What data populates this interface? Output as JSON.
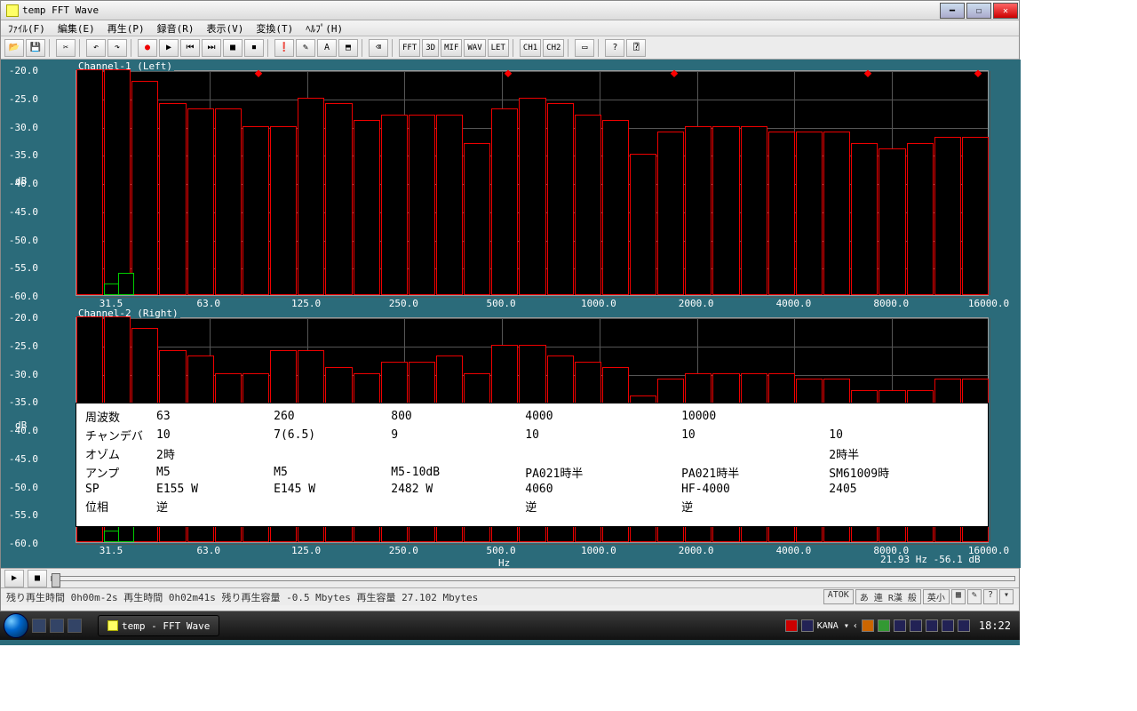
{
  "window": {
    "title": "temp   FFT Wave",
    "menus": [
      "ﾌｧｲﾙ(F)",
      "編集(E)",
      "再生(P)",
      "録音(R)",
      "表示(V)",
      "変換(T)",
      "ﾍﾙﾌﾟ(H)"
    ]
  },
  "toolbar_text_buttons": [
    "FFT",
    "3D",
    "MIF",
    "WAV",
    "LET",
    "CH1",
    "CH2"
  ],
  "chart": {
    "bg": "#2b6b7a",
    "panel_bg": "#000000",
    "bar_border": "#e00000",
    "grid_color": "#555555",
    "text_color": "#ffffff",
    "y_unit": "dB",
    "x_unit": "Hz",
    "panel1_title": "Channel-1 (Left)",
    "panel2_title": "Channel-2 (Right)",
    "y_ticks": [
      -20,
      -25,
      -30,
      -35,
      -40,
      -45,
      -50,
      -55,
      -60
    ],
    "y_min": -60,
    "y_max": -20,
    "x_ticks": [
      "31.5",
      "63.0",
      "125.0",
      "250.0",
      "500.0",
      "1000.0",
      "2000.0",
      "4000.0",
      "8000.0",
      "16000.0"
    ],
    "bars1": [
      -20,
      -20,
      -22,
      -26,
      -27,
      -27,
      -30,
      -30,
      -25,
      -26,
      -29,
      -28,
      -28,
      -28,
      -33,
      -27,
      -25,
      -26,
      -28,
      -29,
      -35,
      -31,
      -30,
      -30,
      -30,
      -31,
      -31,
      -31,
      -33,
      -34,
      -33,
      -32,
      -32
    ],
    "bars2": [
      -20,
      -20,
      -22,
      -26,
      -27,
      -30,
      -30,
      -26,
      -26,
      -29,
      -30,
      -28,
      -28,
      -27,
      -30,
      -25,
      -25,
      -27,
      -28,
      -29,
      -34,
      -31,
      -30,
      -30,
      -30,
      -30,
      -31,
      -31,
      -33,
      -33,
      -33,
      -31,
      -31
    ],
    "green_bars": [
      [
        -58,
        2
      ],
      [
        -56,
        3
      ]
    ],
    "peak_positions": [
      6,
      15,
      21,
      28,
      32
    ],
    "readout": "21.93 Hz -56.1  dB"
  },
  "overlay": {
    "rows": [
      [
        "周波数",
        "63",
        "",
        "260",
        "",
        "800",
        "",
        "4000",
        "",
        "10000"
      ],
      [
        "チャンデバ",
        "10",
        "",
        "7(6.5)",
        "",
        "9",
        "",
        "10",
        "",
        "10",
        "10"
      ],
      [
        "オゾム",
        "2時",
        "",
        "",
        "",
        "",
        "",
        "",
        "",
        "",
        "2時半"
      ],
      [
        "アンプ",
        "M5",
        "",
        "M5",
        "",
        "M5-10dB",
        "",
        "PA021時半",
        "",
        "PA021時半",
        "SM61009時"
      ],
      [
        "SP",
        "E155 W",
        "",
        "E145 W",
        "",
        "2482 W",
        "",
        "4060",
        "",
        "HF-4000",
        "2405"
      ],
      [
        "位相",
        "逆",
        "",
        "",
        "",
        "",
        "",
        "逆",
        "",
        "逆",
        ""
      ]
    ]
  },
  "status": {
    "left": "残り再生時間 0h00m-2s   再生時間 0h02m41s   残り再生容量 -0.5 Mbytes   再生容量 27.102 Mbytes",
    "boxes": [
      "ATOK",
      "あ 連 R漢 般",
      "英小"
    ]
  },
  "taskbar": {
    "task_label": "temp - FFT Wave",
    "clock": "18:22",
    "ime": "KANA ▾"
  }
}
